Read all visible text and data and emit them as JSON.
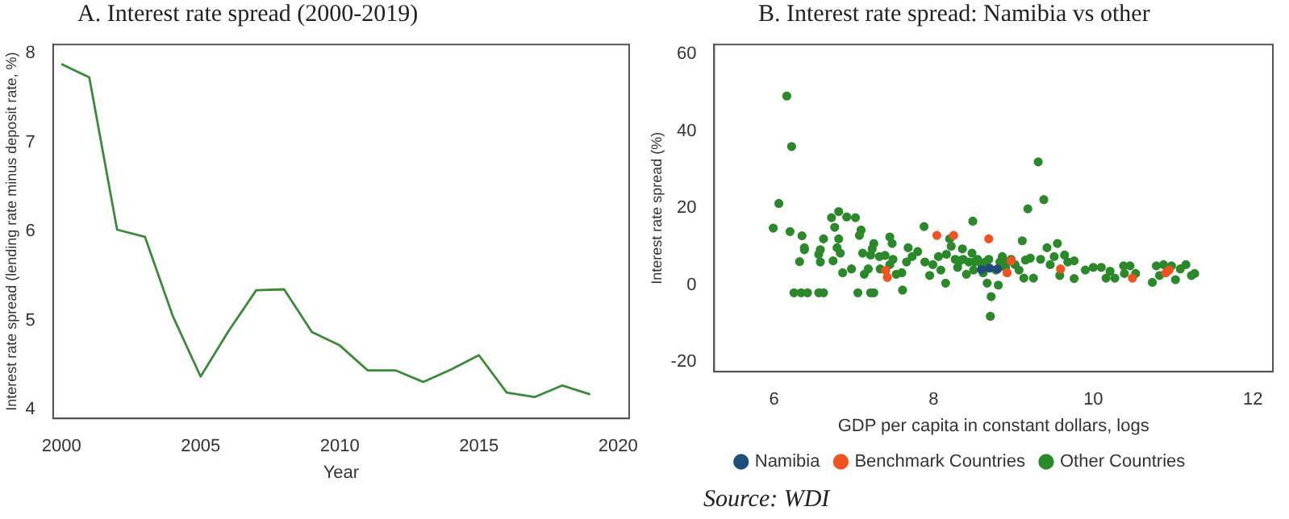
{
  "chart_data": [
    {
      "type": "line",
      "title": "A.    Interest rate spread (2000-2019)",
      "xlabel": "Year",
      "ylabel": "Interest rate spread (lending rate minus deposit rate, %)",
      "x": [
        2000,
        2001,
        2002,
        2003,
        2004,
        2005,
        2006,
        2007,
        2008,
        2009,
        2010,
        2011,
        2012,
        2013,
        2014,
        2015,
        2016,
        2017,
        2018,
        2019
      ],
      "series": [
        {
          "color": "#3a8a3a",
          "values": [
            7.88,
            7.73,
            6.02,
            5.94,
            5.05,
            4.37,
            4.88,
            5.34,
            5.35,
            4.87,
            4.72,
            4.44,
            4.44,
            4.31,
            4.45,
            4.61,
            4.19,
            4.14,
            4.27,
            4.17
          ]
        }
      ],
      "xlim": [
        1999.7,
        2020.4
      ],
      "xticks": [
        2000,
        2005,
        2010,
        2015,
        2020
      ],
      "ylim": [
        3.9,
        8.1
      ],
      "yticks": [
        4,
        5,
        6,
        7,
        8
      ],
      "grid": false,
      "legend": false,
      "marker": "none"
    },
    {
      "type": "scatter",
      "title": "B. Interest rate spread: Namibia vs other",
      "xlabel": "GDP per capita in constant dollars, logs",
      "ylabel": "Interest rate spread (%)",
      "series": [
        {
          "name": "Namibia",
          "color": "#1f4e79",
          "x": [
            8.6,
            8.7,
            8.8
          ],
          "values": [
            4.0,
            4.4,
            4.2
          ]
        },
        {
          "name": "Benchmark Countries",
          "color": "#f4511e",
          "x": [
            8.04,
            8.25,
            8.69,
            7.4,
            7.42,
            8.97,
            8.92,
            9.59,
            10.49,
            10.91,
            10.95
          ],
          "values": [
            12.9,
            12.9,
            12,
            3.8,
            2,
            6.3,
            3.2,
            4.2,
            1.8,
            3.2,
            3.9
          ]
        },
        {
          "name": "Other Countries",
          "color": "#2a8a2a",
          "x": [
            6.16,
            6.22,
            6.06,
            5.99,
            6.2,
            6.35,
            6.32,
            6.38,
            6.38,
            6.25,
            6.34,
            6.42,
            6.56,
            6.58,
            6.62,
            6.58,
            6.56,
            6.62,
            6.72,
            6.81,
            6.76,
            6.91,
            7.02,
            6.81,
            6.79,
            6.83,
            6.74,
            6.86,
            6.97,
            7.05,
            7.11,
            7.09,
            7.07,
            7.13,
            7.18,
            7.21,
            7.23,
            7.25,
            7.21,
            7.25,
            7.32,
            7.33,
            7.39,
            7.45,
            7.48,
            7.49,
            7.45,
            7.53,
            7.6,
            7.61,
            7.66,
            7.73,
            7.68,
            7.8,
            7.88,
            7.89,
            7.95,
            7.99,
            8.06,
            8.09,
            8.15,
            8.16,
            8.2,
            8.22,
            8.27,
            8.3,
            8.36,
            8.37,
            8.41,
            8.44,
            8.48,
            8.49,
            8.5,
            8.55,
            8.6,
            8.62,
            8.65,
            8.67,
            8.72,
            8.71,
            8.78,
            8.81,
            8.83,
            8.9,
            8.97,
            9.02,
            9.07,
            9.11,
            9.13,
            9.18,
            9.21,
            9.25,
            9.31,
            9.34,
            9.38,
            9.42,
            9.46,
            9.51,
            9.55,
            9.58,
            9.64,
            9.68,
            9.76,
            9.76,
            9.9,
            10.0,
            10.1,
            10.16,
            10.21,
            10.27,
            10.38,
            10.46,
            10.39,
            10.53,
            10.74,
            10.79,
            10.83,
            10.88,
            10.98,
            11.03,
            11.09,
            11.16,
            11.23,
            11.27,
            8.33,
            8.51,
            8.69,
            8.86,
            8.93,
            9.15
          ],
          "values": [
            49.1,
            36,
            21.2,
            14.8,
            13.9,
            12.8,
            6.1,
            9.7,
            9.2,
            -2,
            -2,
            -2,
            -2,
            9.2,
            12,
            6,
            8,
            -2,
            17.5,
            19.1,
            15,
            17.7,
            17.5,
            12,
            9.7,
            8.3,
            6.3,
            3.2,
            4.2,
            -2,
            8.3,
            14.3,
            12.9,
            2.8,
            4.2,
            7.8,
            9.4,
            10.8,
            -2,
            -2,
            7.4,
            4.2,
            7.7,
            12.5,
            10.8,
            6.7,
            5.3,
            2.8,
            3.2,
            -1.3,
            6,
            7.4,
            9.7,
            8.7,
            15.2,
            6,
            2.5,
            5.3,
            7.4,
            3.9,
            0.5,
            8,
            12,
            10.1,
            6.7,
            4.6,
            9.4,
            6.7,
            2.8,
            6,
            8.3,
            16.6,
            3.9,
            6.7,
            5.3,
            3.2,
            6,
            0.5,
            -3,
            -8.1,
            3.9,
            0,
            6,
            4.6,
            6.7,
            5.3,
            3.9,
            11.5,
            1.8,
            19.8,
            7,
            1.8,
            32,
            6.7,
            22.2,
            9.7,
            5.3,
            7.4,
            10.8,
            2.5,
            7.8,
            6,
            1.7,
            6.3,
            3.9,
            4.6,
            4.6,
            1.8,
            3.6,
            1.8,
            5,
            5,
            3,
            3,
            0.7,
            5,
            2.5,
            5.3,
            5,
            1.4,
            4.2,
            5.3,
            2.5,
            3,
            6.3,
            6,
            6.7,
            7.4,
            6,
            6.5
          ]
        }
      ],
      "xlim": [
        5.25,
        12.25
      ],
      "xticks": [
        6,
        8,
        10,
        12
      ],
      "ylim": [
        -22.5,
        62.5
      ],
      "yticks": [
        -20,
        0,
        20,
        40,
        60
      ],
      "grid": false,
      "legend": "bottom",
      "marker": "circle",
      "annotations": [
        "Source: WDI"
      ]
    }
  ]
}
